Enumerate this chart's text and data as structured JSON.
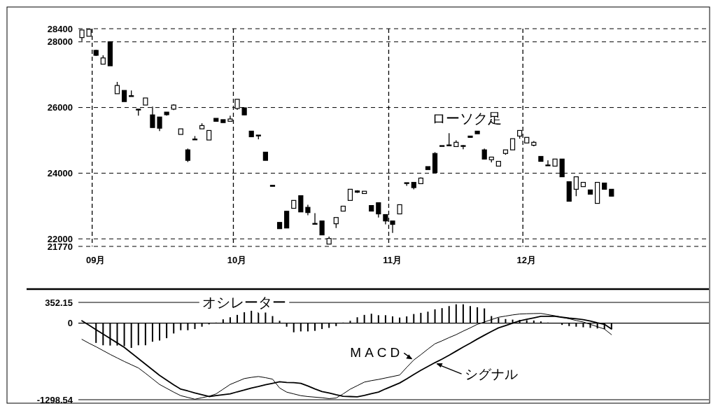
{
  "chart_data": [
    {
      "type": "candlestick",
      "annotations": [
        "ローソク足"
      ],
      "categories": [
        null,
        null,
        "09月",
        null,
        null,
        null,
        null,
        null,
        null,
        null,
        null,
        null,
        null,
        null,
        null,
        null,
        null,
        null,
        null,
        null,
        null,
        null,
        "10月",
        null,
        null,
        null,
        null,
        null,
        null,
        null,
        null,
        null,
        null,
        null,
        null,
        null,
        null,
        null,
        null,
        null,
        null,
        null,
        null,
        null,
        "11月",
        null,
        null,
        null,
        null,
        null,
        null,
        null,
        null,
        null,
        null,
        null,
        null,
        null,
        null,
        null,
        null,
        null,
        null,
        "12月",
        null,
        null,
        null,
        null,
        null,
        null,
        null,
        null,
        null,
        null,
        null,
        null
      ],
      "ohlc": [
        [
          28130,
          28360,
          28020,
          28360
        ],
        [
          28170,
          28380,
          28170,
          28380
        ],
        [
          27740,
          27760,
          27570,
          27590
        ],
        [
          27320,
          27590,
          27320,
          27510
        ],
        [
          28000,
          28000,
          27270,
          27270
        ],
        [
          26420,
          26780,
          26420,
          26670
        ],
        [
          26520,
          26520,
          26180,
          26180
        ],
        [
          26350,
          26520,
          26350,
          26360
        ],
        [
          25950,
          25950,
          25750,
          25950
        ],
        [
          26075,
          26290,
          26075,
          26290
        ],
        [
          25775,
          26030,
          25390,
          25390
        ],
        [
          25710,
          25710,
          25280,
          25370
        ],
        [
          25860,
          25860,
          25750,
          25780
        ],
        [
          25950,
          26100,
          25920,
          26075
        ],
        [
          25180,
          25350,
          25180,
          25350
        ],
        [
          24710,
          24750,
          24340,
          24390
        ],
        [
          25030,
          25130,
          25010,
          25040
        ],
        [
          25350,
          25520,
          25350,
          25450
        ],
        [
          25010,
          25300,
          25010,
          25300
        ],
        [
          25670,
          25670,
          25580,
          25580
        ],
        [
          25630,
          25630,
          25540,
          25540
        ],
        [
          25580,
          25750,
          25580,
          25650
        ],
        [
          25970,
          26250,
          25925,
          26250
        ],
        [
          25990,
          25990,
          25775,
          25775
        ],
        [
          25280,
          25280,
          25110,
          25110
        ],
        [
          25160,
          25160,
          25030,
          25150
        ],
        [
          24640,
          24640,
          24390,
          24390
        ],
        [
          23630,
          23630,
          23600,
          23600
        ],
        [
          22500,
          22500,
          22310,
          22310
        ],
        [
          22840,
          22840,
          22330,
          22330
        ],
        [
          22930,
          23170,
          22930,
          23170
        ],
        [
          23315,
          23315,
          22820,
          22820
        ],
        [
          22960,
          23040,
          22720,
          22800
        ],
        [
          22460,
          22780,
          22440,
          22470
        ],
        [
          22545,
          22545,
          22120,
          22120
        ],
        [
          21840,
          22070,
          21840,
          22010
        ],
        [
          22460,
          22650,
          22330,
          22650
        ],
        [
          22845,
          22995,
          22845,
          22995
        ],
        [
          23170,
          23510,
          23170,
          23510
        ],
        [
          23460,
          23480,
          23400,
          23420
        ],
        [
          23380,
          23450,
          23380,
          23450
        ],
        [
          23015,
          23015,
          22845,
          22845
        ],
        [
          23100,
          23100,
          22650,
          22760
        ],
        [
          22740,
          22740,
          22440,
          22545
        ],
        [
          22545,
          22545,
          22180,
          22440
        ],
        [
          22760,
          23040,
          22760,
          23040
        ],
        [
          23700,
          23710,
          23615,
          23710
        ],
        [
          23720,
          23720,
          23510,
          23560
        ],
        [
          23680,
          23870,
          23680,
          23850
        ],
        [
          24200,
          24200,
          24110,
          24110
        ],
        [
          24600,
          24640,
          24020,
          24020
        ],
        [
          24830,
          24840,
          24830,
          24840
        ],
        [
          24855,
          25220,
          24855,
          24860
        ],
        [
          24810,
          25000,
          24810,
          24940
        ],
        [
          24830,
          24855,
          24730,
          24840
        ],
        [
          25130,
          25130,
          25090,
          25090
        ],
        [
          25280,
          25280,
          25200,
          25200
        ],
        [
          24710,
          24750,
          24430,
          24430
        ],
        [
          24410,
          24490,
          24330,
          24490
        ],
        [
          24215,
          24360,
          24215,
          24360
        ],
        [
          24600,
          24710,
          24560,
          24710
        ],
        [
          24710,
          25050,
          24710,
          25050
        ],
        [
          25130,
          25300,
          25050,
          25300
        ],
        [
          24920,
          25090,
          24920,
          25090
        ],
        [
          24850,
          24980,
          24820,
          24940
        ],
        [
          24510,
          24510,
          24360,
          24360
        ],
        [
          24240,
          24390,
          24240,
          24250
        ],
        [
          24215,
          24430,
          24215,
          24430
        ],
        [
          24430,
          24430,
          23890,
          23890
        ],
        [
          23740,
          23740,
          23145,
          23145
        ],
        [
          23510,
          23890,
          23300,
          23890
        ],
        [
          23590,
          23720,
          23590,
          23720
        ],
        [
          23490,
          23490,
          23360,
          23360
        ],
        [
          23080,
          23720,
          23080,
          23720
        ],
        [
          23700,
          23700,
          23510,
          23510
        ],
        [
          23510,
          23510,
          23300,
          23300
        ]
      ],
      "ylim": [
        21770,
        28400
      ],
      "yticks": [
        21770,
        22000,
        24000,
        26000,
        28000,
        28400
      ],
      "grid": true
    },
    {
      "type": "bar",
      "categories": [
        null,
        null,
        null,
        null,
        null,
        null,
        null,
        null,
        null,
        null,
        null,
        null,
        null,
        null,
        null,
        null,
        null,
        null,
        null,
        null,
        null,
        null,
        null,
        null,
        null,
        null,
        null,
        null,
        null,
        null,
        null,
        null,
        null,
        null,
        null,
        null,
        null,
        null,
        null,
        null,
        null,
        null,
        null,
        null,
        null,
        null,
        null,
        null,
        null,
        null,
        null,
        null,
        null,
        null,
        null,
        null,
        null,
        null,
        null,
        null,
        null,
        null,
        null,
        null,
        null,
        null,
        null,
        null,
        null,
        null,
        null,
        null,
        null,
        null,
        null,
        null
      ],
      "series": [
        {
          "name": "オシレーター",
          "type": "bar",
          "color": "#000000",
          "values": [
            null,
            null,
            -335,
            -375,
            -380,
            -380,
            -390,
            -420,
            -375,
            -375,
            -315,
            -295,
            -255,
            -175,
            -120,
            -120,
            -100,
            -60,
            -20,
            10,
            65,
            100,
            140,
            185,
            210,
            200,
            180,
            120,
            40,
            -60,
            -155,
            -140,
            -140,
            -130,
            -100,
            -80,
            -50,
            10,
            40,
            100,
            140,
            160,
            135,
            135,
            115,
            95,
            115,
            155,
            175,
            195,
            235,
            255,
            290,
            320,
            320,
            290,
            270,
            250,
            120,
            90,
            70,
            60,
            55,
            50,
            45,
            30,
            10,
            null,
            -30,
            -50,
            -60,
            -70,
            -80,
            -90,
            -100,
            -100
          ]
        },
        {
          "name": "MACD",
          "type": "line",
          "color": "#000000",
          "values": [
            -275,
            -340,
            -400,
            -465,
            -530,
            -590,
            -650,
            -705,
            -760,
            -850,
            -945,
            -1040,
            -1105,
            -1170,
            -1230,
            -1260,
            -1290,
            -1265,
            -1240,
            -1200,
            -1120,
            -1040,
            -990,
            -940,
            -920,
            -905,
            -925,
            -950,
            -1100,
            -1170,
            -1200,
            -1230,
            -1245,
            -1255,
            -1265,
            -1280,
            -1270,
            -1200,
            -1120,
            -1060,
            -1000,
            -975,
            -955,
            -930,
            -905,
            -880,
            -750,
            -625,
            -535,
            -440,
            -350,
            -300,
            -245,
            -195,
            -135,
            -80,
            -20,
            20,
            60,
            100,
            120,
            140,
            155,
            160,
            163,
            165,
            145,
            125,
            100,
            75,
            45,
            20,
            -20,
            -60,
            -100,
            -195
          ]
        },
        {
          "name": "シグナル",
          "type": "line",
          "color": "#000000",
          "values": [
            40,
            -35,
            -110,
            -185,
            -260,
            -335,
            -410,
            -505,
            -600,
            -695,
            -790,
            -885,
            -965,
            -1045,
            -1120,
            -1150,
            -1185,
            -1215,
            -1245,
            -1230,
            -1215,
            -1200,
            -1165,
            -1135,
            -1100,
            -1075,
            -1045,
            -1020,
            -995,
            -1005,
            -1010,
            -1020,
            -1065,
            -1115,
            -1160,
            -1185,
            -1215,
            -1240,
            -1245,
            -1250,
            -1225,
            -1195,
            -1170,
            -1115,
            -1065,
            -1015,
            -945,
            -870,
            -800,
            -735,
            -670,
            -610,
            -545,
            -475,
            -405,
            -340,
            -270,
            -205,
            -140,
            -80,
            -40,
            0,
            40,
            65,
            90,
            115,
            115,
            115,
            100,
            85,
            75,
            60,
            35,
            5,
            -20,
            -100
          ]
        }
      ],
      "ylim": [
        -1298.54,
        352.15
      ],
      "yticks": [
        352.15,
        0,
        -1298.54
      ],
      "grid": "y"
    }
  ]
}
